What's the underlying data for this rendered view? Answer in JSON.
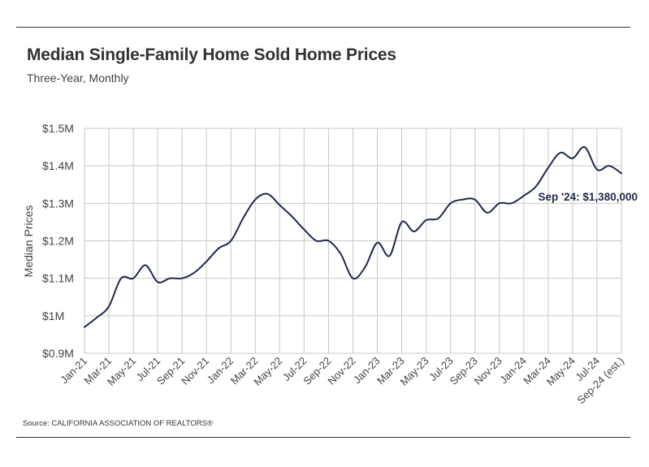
{
  "title": "Median Single-Family Home Sold Home Prices",
  "subtitle": "Three-Year, Monthly",
  "source": "Source:  CALIFORNIA ASSOCIATION OF REALTORS®",
  "line_color": "#1e2a4a",
  "grid_color": "#c8c8c8",
  "chart_data": {
    "type": "line",
    "title": "Median Single-Family Home Sold Home Prices",
    "subtitle": "Three-Year, Monthly",
    "xlabel": "",
    "ylabel": "Median Prices",
    "ylim": [
      900000,
      1500000
    ],
    "y_ticks": [
      900000,
      1000000,
      1100000,
      1200000,
      1300000,
      1400000,
      1500000
    ],
    "y_tick_labels": [
      "$0.9M",
      "$1M",
      "$1.1M",
      "$1.2M",
      "$1.3M",
      "$1.4M",
      "$1.5M"
    ],
    "grid": true,
    "x": [
      "Jan-21",
      "Feb-21",
      "Mar-21",
      "Apr-21",
      "May-21",
      "Jun-21",
      "Jul-21",
      "Aug-21",
      "Sep-21",
      "Oct-21",
      "Nov-21",
      "Dec-21",
      "Jan-22",
      "Feb-22",
      "Mar-22",
      "Apr-22",
      "May-22",
      "Jun-22",
      "Jul-22",
      "Aug-22",
      "Sep-22",
      "Oct-22",
      "Nov-22",
      "Dec-22",
      "Jan-23",
      "Feb-23",
      "Mar-23",
      "Apr-23",
      "May-23",
      "Jun-23",
      "Jul-23",
      "Aug-23",
      "Sep-23",
      "Oct-23",
      "Nov-23",
      "Dec-23",
      "Jan-24",
      "Feb-24",
      "Mar-24",
      "Apr-24",
      "May-24",
      "Jun-24",
      "Jul-24",
      "Aug-24",
      "Sep-24 (est.)"
    ],
    "x_tick_labels": [
      "Jan-21",
      "Mar-21",
      "May-21",
      "Jul-21",
      "Sep-21",
      "Nov-21",
      "Jan-22",
      "Mar-22",
      "May-22",
      "Jul-22",
      "Sep-22",
      "Nov-22",
      "Jan-23",
      "Mar-23",
      "May-23",
      "Jul-23",
      "Sep-23",
      "Nov-23",
      "Jan-24",
      "Mar-24",
      "May-24",
      "Jul-24",
      "Sep-24 (est.)"
    ],
    "series": [
      {
        "values": [
          970000,
          995000,
          1025000,
          1100000,
          1100000,
          1135000,
          1090000,
          1100000,
          1100000,
          1115000,
          1145000,
          1180000,
          1200000,
          1260000,
          1310000,
          1325000,
          1295000,
          1265000,
          1230000,
          1200000,
          1200000,
          1165000,
          1100000,
          1130000,
          1195000,
          1160000,
          1250000,
          1225000,
          1255000,
          1260000,
          1300000,
          1310000,
          1310000,
          1275000,
          1300000,
          1300000,
          1320000,
          1345000,
          1395000,
          1435000,
          1420000,
          1450000,
          1390000,
          1400000,
          1380000
        ]
      }
    ],
    "annotation": "Sep '24: $1,380,000"
  }
}
